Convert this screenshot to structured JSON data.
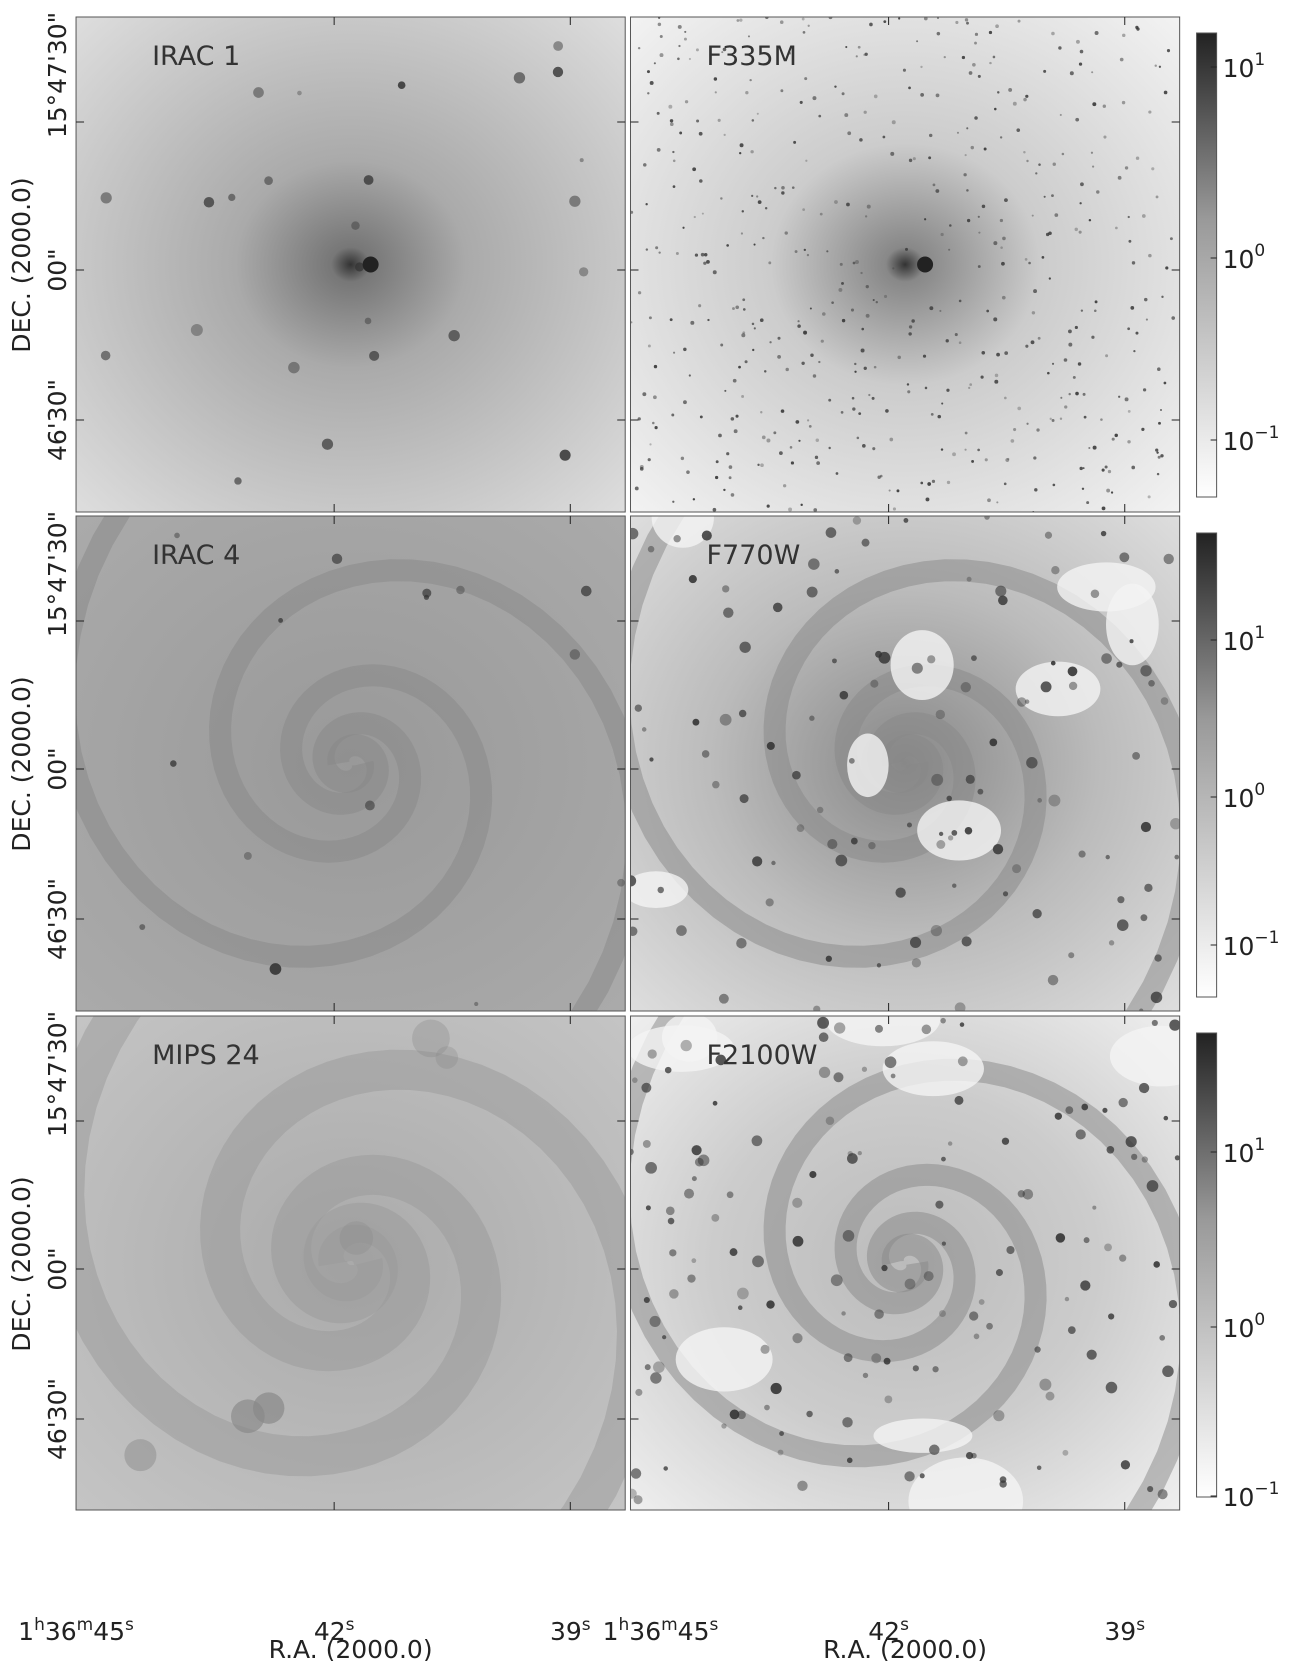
{
  "panels": [
    {
      "label": "IRAC 1"
    },
    {
      "label": "F335M"
    },
    {
      "label": "IRAC 4"
    },
    {
      "label": "F770W"
    },
    {
      "label": "MIPS 24"
    },
    {
      "label": "F2100W"
    }
  ],
  "axes": {
    "dec_label": "DEC. (2000.0)",
    "ra_label": "R.A. (2000.0)",
    "dec_ticks": [
      "15°47'30\"",
      "00\"",
      "46'30\""
    ],
    "ra_ticks": [
      [
        "1",
        "h",
        "36",
        "m",
        "45",
        "s"
      ],
      [
        "42",
        "s"
      ],
      [
        "39",
        "s"
      ]
    ]
  },
  "colorbars": [
    {
      "ticks": [
        [
          "10",
          "1"
        ],
        [
          "10",
          "0"
        ],
        [
          "10",
          "−1"
        ]
      ]
    },
    {
      "ticks": [
        [
          "10",
          "1"
        ],
        [
          "10",
          "0"
        ],
        [
          "10",
          "−1"
        ]
      ]
    },
    {
      "ticks": [
        [
          "10",
          "1"
        ],
        [
          "10",
          "0"
        ],
        [
          "10",
          "−1"
        ]
      ]
    }
  ]
}
